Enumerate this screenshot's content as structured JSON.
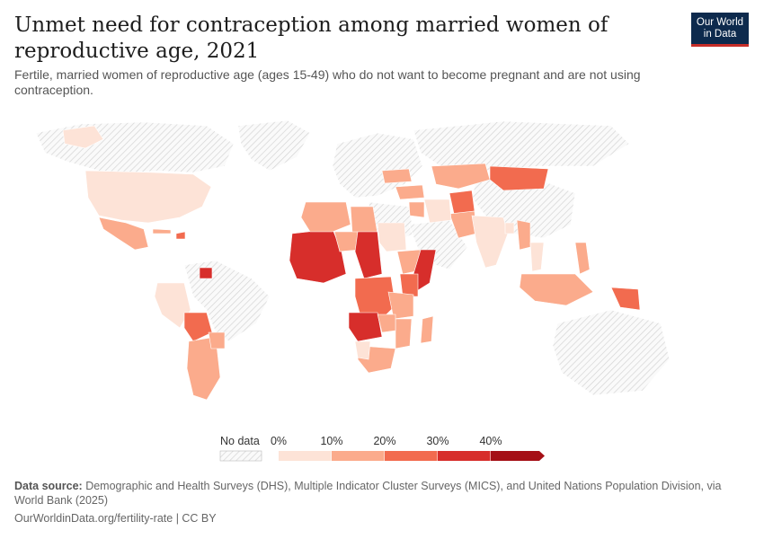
{
  "header": {
    "title": "Unmet need for contraception among married women of reproductive age, 2021",
    "subtitle": "Fertile, married women of reproductive age (ages 15-49) who do not want to become pregnant and are not using contraception.",
    "logo_line1": "Our World",
    "logo_line2": "in Data"
  },
  "legend": {
    "no_data_label": "No data",
    "ticks": [
      "0%",
      "10%",
      "20%",
      "30%",
      "40%"
    ],
    "bins": [
      {
        "min": 0,
        "max": 10,
        "color": "#fde3d7"
      },
      {
        "min": 10,
        "max": 20,
        "color": "#fbab8c"
      },
      {
        "min": 20,
        "max": 30,
        "color": "#f26b4f"
      },
      {
        "min": 30,
        "max": 40,
        "color": "#d72e2b"
      },
      {
        "min": 40,
        "max": null,
        "color": "#a50f16"
      }
    ]
  },
  "regions": [
    {
      "name": "North America",
      "bin": 0
    },
    {
      "name": "Greenland",
      "bin": 0
    },
    {
      "name": "Mexico",
      "bin": 1
    },
    {
      "name": "Haiti",
      "bin": 2
    },
    {
      "name": "Cuba",
      "bin": 1
    },
    {
      "name": "Guyana",
      "bin": 3
    },
    {
      "name": "Peru",
      "bin": 0
    },
    {
      "name": "Bolivia",
      "bin": 2
    },
    {
      "name": "Argentina",
      "bin": 1
    },
    {
      "name": "Paraguay",
      "bin": 1
    },
    {
      "name": "West Africa",
      "bin": 3
    },
    {
      "name": "Algeria",
      "bin": 1
    },
    {
      "name": "Libya",
      "bin": 1
    },
    {
      "name": "Niger",
      "bin": 1
    },
    {
      "name": "Chad",
      "bin": 3
    },
    {
      "name": "Sudan",
      "bin": 0
    },
    {
      "name": "Ethiopia",
      "bin": 1
    },
    {
      "name": "Somalia",
      "bin": 3
    },
    {
      "name": "Kenya",
      "bin": 2
    },
    {
      "name": "DR Congo",
      "bin": 2
    },
    {
      "name": "Angola",
      "bin": 3
    },
    {
      "name": "Tanzania",
      "bin": 1
    },
    {
      "name": "Mozambique",
      "bin": 1
    },
    {
      "name": "Madagascar",
      "bin": 1
    },
    {
      "name": "South Africa",
      "bin": 1
    },
    {
      "name": "Zambia",
      "bin": 1
    },
    {
      "name": "Namibia",
      "bin": 0
    },
    {
      "name": "Kazakhstan",
      "bin": 1
    },
    {
      "name": "Mongolia",
      "bin": 2
    },
    {
      "name": "Afghanistan",
      "bin": 2
    },
    {
      "name": "Pakistan",
      "bin": 1
    },
    {
      "name": "India",
      "bin": 0
    },
    {
      "name": "Bangladesh",
      "bin": 0
    },
    {
      "name": "Myanmar",
      "bin": 1
    },
    {
      "name": "Thailand",
      "bin": 0
    },
    {
      "name": "Philippines",
      "bin": 1
    },
    {
      "name": "Indonesia",
      "bin": 1
    },
    {
      "name": "Papua New Guinea",
      "bin": 2
    },
    {
      "name": "Turkey",
      "bin": 1
    },
    {
      "name": "Iran",
      "bin": 0
    },
    {
      "name": "Iraq",
      "bin": 1
    },
    {
      "name": "Ukraine",
      "bin": 1
    }
  ],
  "colors": {
    "no_data_hatch": "#cfcfcf",
    "land_outline": "#ffffff"
  },
  "footer": {
    "source_label": "Data source:",
    "source_text": " Demographic and Health Surveys (DHS), Multiple Indicator Cluster Surveys (MICS), and United Nations Population Division, via World Bank (2025)",
    "url": "OurWorldinData.org/fertility-rate | CC BY"
  }
}
